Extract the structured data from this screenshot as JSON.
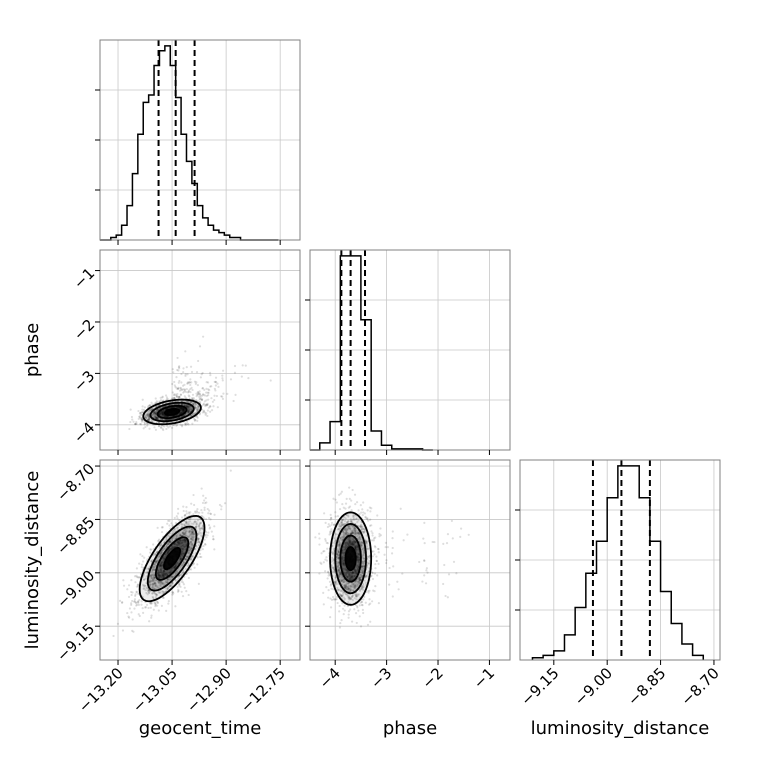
{
  "chart_data": {
    "type": "corner",
    "parameters": [
      "geocent_time",
      "phase",
      "luminosity_distance"
    ],
    "axis_labels": {
      "x": [
        "geocent_time",
        "phase",
        "luminosity_distance"
      ],
      "y": [
        "",
        "phase",
        "luminosity_distance"
      ]
    },
    "ranges": {
      "geocent_time": [
        -13.25,
        -12.695
      ],
      "phase": [
        -4.49,
        -0.6
      ],
      "luminosity_distance": [
        -9.245,
        -8.683
      ]
    },
    "ticks": {
      "geocent_time": {
        "values": [
          -13.2,
          -13.05,
          -12.9,
          -12.75
        ],
        "labels": [
          "−13.20",
          "−13.05",
          "−12.90",
          "−12.75"
        ]
      },
      "phase": {
        "values": [
          -4,
          -3,
          -2,
          -1
        ],
        "labels": [
          "−4",
          "−3",
          "−2",
          "−1"
        ]
      },
      "luminosity_distance": {
        "values": [
          -9.15,
          -9.0,
          -8.85,
          -8.7
        ],
        "labels": [
          "−9.15",
          "−9.00",
          "−8.85",
          "−8.70"
        ]
      }
    },
    "grid": true,
    "marginals": [
      {
        "parameter": "geocent_time",
        "bin_edges": [
          -13.25,
          -13.235,
          -13.22,
          -13.205,
          -13.19,
          -13.175,
          -13.16,
          -13.145,
          -13.13,
          -13.115,
          -13.1,
          -13.085,
          -13.07,
          -13.055,
          -13.04,
          -13.025,
          -13.01,
          -12.995,
          -12.98,
          -12.965,
          -12.95,
          -12.935,
          -12.92,
          -12.905,
          -12.89,
          -12.875,
          -12.86,
          -12.845,
          -12.83,
          -12.815,
          -12.8,
          -12.785,
          -12.77,
          -12.755
        ],
        "counts": [
          0,
          0,
          1,
          2,
          6,
          14,
          27,
          43,
          56,
          59,
          71,
          77,
          79,
          71,
          58,
          43,
          32,
          23,
          14,
          9,
          6,
          4,
          3,
          2,
          1,
          1,
          0,
          0,
          0,
          0,
          0,
          0,
          0
        ],
        "quantiles": [
          -13.0875,
          -13.04,
          -12.9875
        ]
      },
      {
        "parameter": "phase",
        "bin_edges": [
          -4.49,
          -4.3,
          -4.1,
          -3.9,
          -3.7,
          -3.5,
          -3.3,
          -3.1,
          -2.9,
          -2.7,
          -2.5,
          -2.3,
          -2.1
        ],
        "counts": [
          0,
          6,
          24,
          164,
          164,
          110,
          16,
          4,
          1,
          1,
          1,
          0
        ],
        "quantiles": [
          -3.88,
          -3.7,
          -3.42
        ]
      },
      {
        "parameter": "luminosity_distance",
        "bin_edges": [
          -9.21,
          -9.18,
          -9.15,
          -9.12,
          -9.09,
          -9.06,
          -9.03,
          -9.0,
          -8.97,
          -8.94,
          -8.91,
          -8.88,
          -8.85,
          -8.82,
          -8.79,
          -8.76,
          -8.73
        ],
        "counts": [
          1,
          2,
          4,
          11,
          23,
          38,
          52,
          71,
          85,
          85,
          71,
          52,
          30,
          16,
          7,
          2
        ],
        "quantiles": [
          -9.04,
          -8.96,
          -8.88
        ]
      }
    ],
    "joint": [
      {
        "x": "geocent_time",
        "y": "phase",
        "center": [
          -13.05,
          -3.75
        ],
        "spread": [
          0.04,
          0.12
        ],
        "correlation": 0.35,
        "contour_levels_sigma": [
          0.5,
          1.0,
          1.5,
          2.0
        ]
      },
      {
        "x": "geocent_time",
        "y": "luminosity_distance",
        "center": [
          -13.05,
          -8.96
        ],
        "spread": [
          0.045,
          0.06
        ],
        "correlation": 0.72,
        "contour_levels_sigma": [
          0.5,
          1.0,
          1.5,
          2.0
        ]
      },
      {
        "x": "phase",
        "y": "luminosity_distance",
        "center": [
          -3.7,
          -8.96
        ],
        "spread": [
          0.2,
          0.065
        ],
        "correlation": 0.0,
        "contour_levels_sigma": [
          0.5,
          1.0,
          1.5,
          2.0
        ]
      }
    ]
  }
}
